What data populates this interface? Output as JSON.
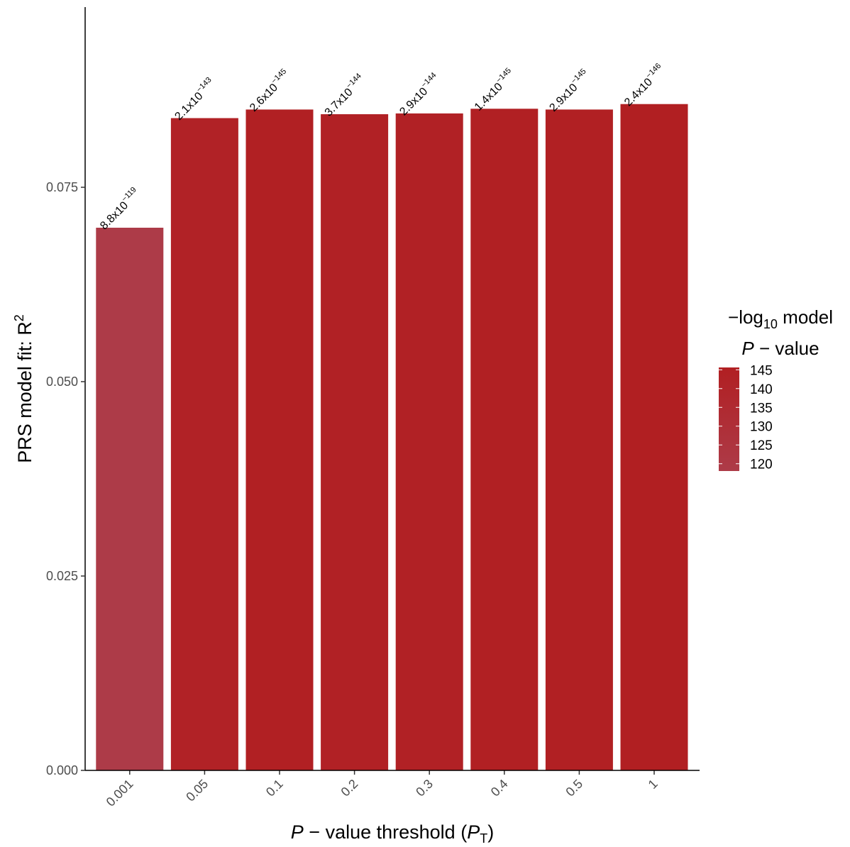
{
  "chart_data": {
    "type": "bar",
    "categories": [
      "0.001",
      "0.05",
      "0.1",
      "0.2",
      "0.3",
      "0.4",
      "0.5",
      "1"
    ],
    "values": [
      0.0698,
      0.0839,
      0.085,
      0.0844,
      0.0845,
      0.0851,
      0.085,
      0.0857
    ],
    "color_values": [
      118.06,
      142.68,
      144.59,
      143.43,
      143.54,
      144.85,
      144.54,
      145.62
    ],
    "bar_labels": [
      {
        "mantissa": "8.8x10",
        "exponent": "−119"
      },
      {
        "mantissa": "2.1x10",
        "exponent": "−143"
      },
      {
        "mantissa": "2.6x10",
        "exponent": "−145"
      },
      {
        "mantissa": "3.7x10",
        "exponent": "−144"
      },
      {
        "mantissa": "2.9x10",
        "exponent": "−144"
      },
      {
        "mantissa": "1.4x10",
        "exponent": "−145"
      },
      {
        "mantissa": "2.9x10",
        "exponent": "−145"
      },
      {
        "mantissa": "2.4x10",
        "exponent": "−146"
      }
    ],
    "xlabel": {
      "italic": "P",
      "text": " − value threshold (",
      "sub_base": "P",
      "sub": "T",
      "end": ")"
    },
    "ylabel": {
      "text": "PRS model fit:  R",
      "sup": "2"
    },
    "ylim": [
      0,
      0.0985
    ],
    "yticks": [
      "0.000",
      "0.025",
      "0.050",
      "0.075"
    ],
    "ytick_values": [
      0,
      0.025,
      0.05,
      0.075
    ],
    "grid": false,
    "legend": {
      "title_line1": "−log",
      "title_sub": "10",
      "title_line1_end": " model",
      "title_line2_italic": "P",
      "title_line2": " − value",
      "ticks": [
        "145",
        "140",
        "135",
        "130",
        "125",
        "120"
      ],
      "tick_values": [
        145,
        140,
        135,
        130,
        125,
        120
      ],
      "range": [
        118.06,
        145.62
      ],
      "color_low": "#ad3b48",
      "color_high": "#b11f22",
      "placement": "right"
    }
  }
}
